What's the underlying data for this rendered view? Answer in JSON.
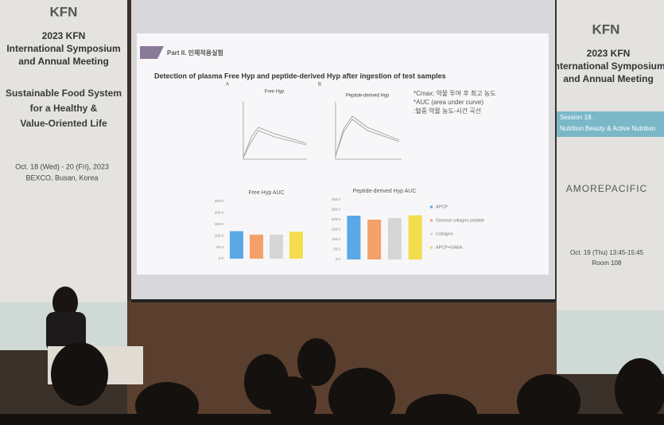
{
  "left_banner": {
    "logo": "KFN",
    "title_lines": [
      "2023 KFN",
      "International Symposium",
      "and Annual Meeting"
    ],
    "theme_lines": [
      "Sustainable Food System",
      "for a Healthy &",
      "Value-Oriented Life"
    ],
    "dates": "Oct. 18 (Wed) - 20 (Fri), 2023",
    "venue": "BEXCO, Busan, Korea"
  },
  "right_banner": {
    "logo": "KFN",
    "title_lines": [
      "2023 KFN",
      "International Symposium",
      "and Annual Meeting"
    ],
    "session_lines": [
      "Session 18.",
      "Nutrition Beauty & Active Nutrition"
    ],
    "sponsor": "AMOREPACIFIC",
    "time": "Oct. 19 (Thu) 13:45-15:45",
    "room": "Room 108"
  },
  "slide": {
    "section": "Part II. 인체적용실험",
    "heading": "Detection of plasma Free Hyp and peptide-derived Hyp  after ingestion of test samples",
    "panel_a": "A",
    "panel_b": "B",
    "line_titles": [
      "Free Hyp",
      "Peptide-derived Hyp"
    ],
    "notes": [
      "*Cmax: 약물 투여 후 최고 농도",
      "*AUC (area under curve)",
      ":혈중 약물 농도-시간 곡선"
    ],
    "legend": [
      {
        "name": "APCP",
        "color": "#5aa9e6"
      },
      {
        "name": "General collagen peptide",
        "color": "#f4a06a"
      },
      {
        "name": "Collagen",
        "color": "#d6d6d6"
      },
      {
        "name": "APCP+GABA",
        "color": "#f3dc4e"
      }
    ],
    "auc_charts": [
      {
        "title": "Free Hyp AUC",
        "ylim": [
          0,
          250
        ],
        "yticks": [
          {
            "value": 0,
            "label": "0.0"
          },
          {
            "value": 50,
            "label": "50.0"
          },
          {
            "value": 100,
            "label": "100.0"
          },
          {
            "value": 150,
            "label": "150.0"
          },
          {
            "value": 200,
            "label": "200.0"
          },
          {
            "value": 250,
            "label": "250.0"
          }
        ],
        "values": [
          120,
          105,
          105,
          118
        ]
      },
      {
        "title": "Peptide-derived Hyp AUC",
        "ylim": [
          0,
          300
        ],
        "yticks": [
          {
            "value": 0,
            "label": "0.0"
          },
          {
            "value": 50,
            "label": "50.0"
          },
          {
            "value": 100,
            "label": "100.0"
          },
          {
            "value": 150,
            "label": "150.0"
          },
          {
            "value": 200,
            "label": "200.0"
          },
          {
            "value": 250,
            "label": "250.0"
          },
          {
            "value": 300,
            "label": "300.0"
          }
        ],
        "values": [
          220,
          200,
          208,
          222
        ]
      }
    ]
  }
}
